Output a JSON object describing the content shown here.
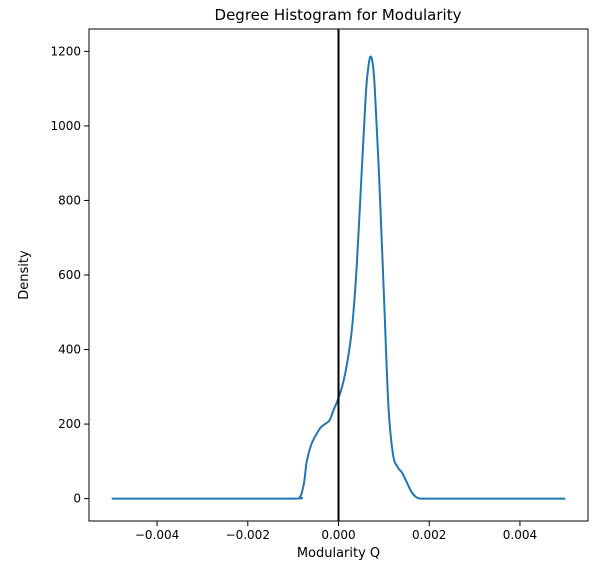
{
  "chart_data": {
    "type": "line",
    "title": "Degree Histogram for Modularity",
    "xlabel": "Modularity Q",
    "ylabel": "Density",
    "xlim": [
      -0.0055,
      0.0055
    ],
    "ylim": [
      -60,
      1260
    ],
    "xticks": [
      -0.004,
      -0.002,
      0.0,
      0.002,
      0.004
    ],
    "xtick_labels": [
      "−0.004",
      "−0.002",
      "0.000",
      "0.002",
      "0.004"
    ],
    "yticks": [
      0,
      200,
      400,
      600,
      800,
      1000,
      1200
    ],
    "ytick_labels": [
      "0",
      "200",
      "400",
      "600",
      "800",
      "1000",
      "1200"
    ],
    "grid": false,
    "reference_line": {
      "x": 0.0,
      "color": "#000000"
    },
    "series": [
      {
        "color": "#1f77b4",
        "x": [
          -0.005,
          -0.003,
          -0.001,
          -0.00085,
          -0.0008,
          -0.00075,
          -0.0007,
          -0.0006,
          -0.0005,
          -0.0004,
          -0.0003,
          -0.0002,
          -0.0001,
          0.0,
          0.0001,
          0.0002,
          0.0003,
          0.0004,
          0.0005,
          0.0006,
          0.00065,
          0.0007,
          0.00075,
          0.0008,
          0.0009,
          0.001,
          0.0011,
          0.0012,
          0.0013,
          0.0014,
          0.0015,
          0.0016,
          0.0017,
          0.0018,
          0.002,
          0.003,
          0.005
        ],
        "y": [
          0,
          0,
          0,
          5,
          20,
          50,
          100,
          145,
          170,
          190,
          200,
          210,
          240,
          270,
          310,
          370,
          460,
          620,
          850,
          1080,
          1150,
          1185,
          1170,
          1100,
          850,
          550,
          250,
          120,
          85,
          70,
          45,
          20,
          5,
          0,
          0,
          0,
          0
        ]
      }
    ]
  }
}
